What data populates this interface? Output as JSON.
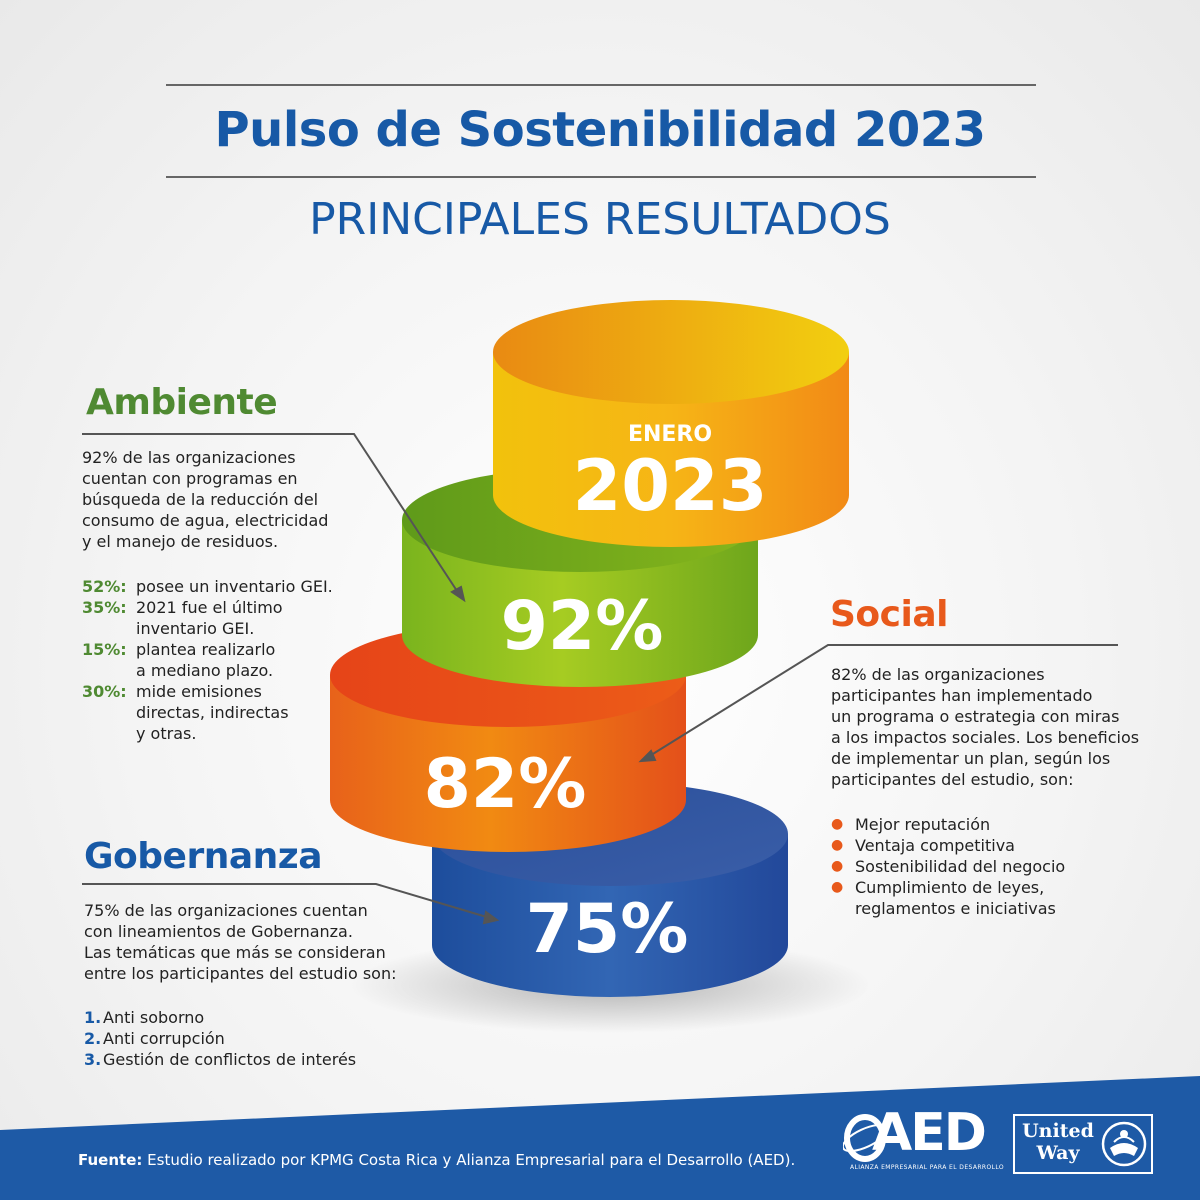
{
  "header": {
    "title": "Pulso de Sostenibilidad 2023",
    "subtitle": "PRINCIPALES RESULTADOS"
  },
  "stack": {
    "top_label": "ENERO",
    "top_year": "2023",
    "levels": [
      {
        "key": "ambiente",
        "value": "92%",
        "color": "#8cbf1e"
      },
      {
        "key": "social",
        "value": "82%",
        "color": "#ee7314"
      },
      {
        "key": "gobernanza",
        "value": "75%",
        "color": "#2858a8"
      }
    ]
  },
  "ambiente": {
    "title": "Ambiente",
    "intro": "92% de las organizaciones\ncuentan con programas en\nbúsqueda de la reducción del\nconsumo de agua, electricidad\ny el manejo de residuos.",
    "stats": [
      {
        "k": "52%:",
        "v": "posee un inventario GEI."
      },
      {
        "k": "35%:",
        "v": "2021 fue el último\ninventario GEI."
      },
      {
        "k": "15%:",
        "v": "plantea realizarlo\na mediano plazo."
      },
      {
        "k": "30%:",
        "v": "mide emisiones\ndirectas, indirectas\ny otras."
      }
    ],
    "color": "#4f8a32"
  },
  "social": {
    "title": "Social",
    "intro": "82% de las organizaciones\nparticipantes han implementado\nun programa o estrategia con miras\na los impactos sociales. Los beneficios\nde implementar un plan, según los\nparticipantes del estudio, son:",
    "bullets": [
      "Mejor reputación",
      "Ventaja competitiva",
      "Sostenibilidad del negocio",
      "Cumplimiento de leyes,\nreglamentos e iniciativas"
    ],
    "color": "#e8591b"
  },
  "gobernanza": {
    "title": "Gobernanza",
    "intro": "75% de las organizaciones cuentan\ncon lineamientos de Gobernanza.\nLas temáticas que más se consideran\nentre los participantes del estudio son:",
    "items": [
      {
        "k": "1.",
        "v": "Anti soborno"
      },
      {
        "k": "2.",
        "v": "Anti corrupción"
      },
      {
        "k": "3.",
        "v": "Gestión de conflictos de interés"
      }
    ],
    "color": "#1759a6"
  },
  "footer": {
    "source_label": "Fuente:",
    "source_text": "Estudio realizado por KPMG Costa Rica y Alianza Empresarial para el Desarrollo (AED).",
    "aed_logo_text": "AED",
    "aed_tagline": "ALIANZA EMPRESARIAL PARA EL DESARROLLO",
    "uw_text": "United\nWay",
    "band_color": "#1e5aa6"
  }
}
